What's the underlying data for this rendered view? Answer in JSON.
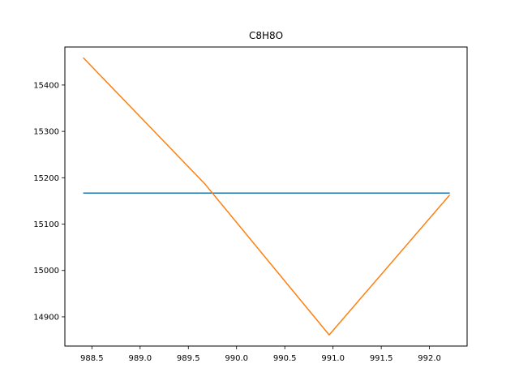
{
  "chart_data": {
    "type": "line",
    "title": "C8H8O",
    "xlabel": "",
    "ylabel": "",
    "xlim": [
      988.22,
      992.39
    ],
    "ylim": [
      14837,
      15482
    ],
    "grid": false,
    "x_ticks": [
      988.5,
      989.0,
      989.5,
      990.0,
      990.5,
      991.0,
      991.5,
      992.0
    ],
    "x_tick_labels": [
      "988.5",
      "989.0",
      "989.5",
      "990.0",
      "990.5",
      "991.0",
      "991.5",
      "992.0"
    ],
    "y_ticks": [
      14900,
      15000,
      15100,
      15200,
      15300,
      15400
    ],
    "y_tick_labels": [
      "14900",
      "15000",
      "15100",
      "15200",
      "15300",
      "15400"
    ],
    "series": [
      {
        "color": "#1f77b4",
        "points": [
          [
            988.41,
            15167
          ],
          [
            992.21,
            15167
          ]
        ]
      },
      {
        "color": "#ff7f0e",
        "points": [
          [
            988.41,
            15459
          ],
          [
            989.67,
            15187
          ],
          [
            990.96,
            14861
          ],
          [
            992.21,
            15163
          ]
        ]
      }
    ]
  }
}
